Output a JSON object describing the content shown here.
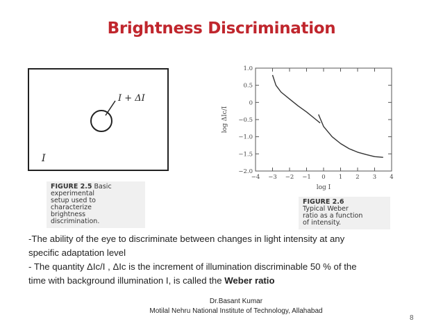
{
  "slide": {
    "title": "Brightness Discrimination",
    "page_number": "8"
  },
  "figure1": {
    "label_increment": "I + ΔI",
    "label_background": "I",
    "caption_fig": "FIGURE 2.5",
    "caption_text_1": "Basic",
    "caption_lines": [
      "experimental",
      "setup used to",
      "characterize",
      "brightness",
      "discrimination."
    ]
  },
  "figure2": {
    "caption_fig": "FIGURE 2.6",
    "caption_lines": [
      "Typical Weber",
      "ratio as a function",
      "of intensity."
    ]
  },
  "chart_data": {
    "type": "line",
    "xlabel": "log I",
    "ylabel": "log ΔIc/I",
    "xlim": [
      -4,
      4
    ],
    "ylim": [
      -2.0,
      1.0
    ],
    "x_ticks": [
      "−4",
      "−3",
      "−2",
      "−1",
      "0",
      "1",
      "2",
      "3",
      "4"
    ],
    "y_ticks": [
      "1.0",
      "0.5",
      "0",
      "−0.5",
      "−1.0",
      "−1.5",
      "−2.0"
    ],
    "series": [
      {
        "x": [
          -3.0,
          -2.8,
          -2.5,
          -2.0,
          -1.5,
          -1.0,
          -0.5,
          -0.2
        ],
        "y": [
          0.8,
          0.5,
          0.3,
          0.1,
          -0.1,
          -0.28,
          -0.48,
          -0.6
        ]
      },
      {
        "x": [
          -0.3,
          0.0,
          0.5,
          1.0,
          1.5,
          2.0,
          2.5,
          3.0,
          3.5
        ],
        "y": [
          -0.35,
          -0.7,
          -1.0,
          -1.2,
          -1.35,
          -1.45,
          -1.52,
          -1.58,
          -1.6
        ]
      }
    ]
  },
  "body": {
    "line1": "-The ability  of the eye to discriminate between changes in light intensity at any",
    "line2": "specific adaptation level",
    "line3": "- The quantity ΔIc/I , ΔIc is the increment of illumination discriminable 50 % of the",
    "line4_prefix": "time with background illumination  I, is called the ",
    "line4_bold": "Weber ratio"
  },
  "footer": {
    "author": "Dr.Basant Kumar",
    "institute": "Motilal Nehru National Institute of Technology, Allahabad"
  },
  "colors": {
    "title": "#c0262d",
    "text": "#222222"
  }
}
